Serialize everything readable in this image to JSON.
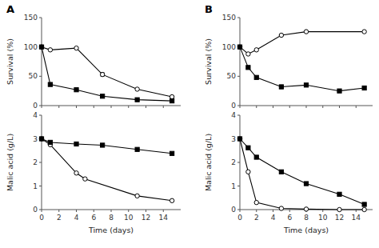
{
  "chart_data": [
    {
      "type": "line",
      "title": "A",
      "ylabel": "Survival (%)",
      "xlim": [
        0,
        16
      ],
      "xticks": [
        0,
        2,
        4,
        6,
        8,
        10,
        12,
        14
      ],
      "ylim": [
        0,
        150
      ],
      "yticks": [
        0,
        50,
        100,
        150
      ],
      "tick_labels": "y",
      "series": [
        {
          "marker": "open-circle",
          "color": "black",
          "x": [
            0,
            1,
            4,
            7,
            11,
            15
          ],
          "values": [
            100,
            95,
            98,
            53,
            28,
            15
          ],
          "errors": [
            0,
            0,
            0,
            3,
            0,
            0
          ]
        },
        {
          "marker": "filled-square",
          "color": "black",
          "x": [
            0,
            1,
            4,
            7,
            11,
            15
          ],
          "values": [
            100,
            36,
            27,
            16,
            10,
            8
          ],
          "errors": [
            0,
            0,
            0,
            0,
            0,
            0
          ]
        }
      ]
    },
    {
      "type": "line",
      "xlabel": "Time (days)",
      "ylabel": "Malic acid (g/L)",
      "xlim": [
        0,
        16
      ],
      "xticks": [
        0,
        2,
        4,
        6,
        8,
        10,
        12,
        14
      ],
      "ylim": [
        0,
        4
      ],
      "yticks": [
        0,
        1,
        2,
        3,
        4
      ],
      "series": [
        {
          "marker": "open-circle",
          "color": "black",
          "x": [
            0,
            1,
            4,
            5,
            11,
            15
          ],
          "values": [
            3.0,
            2.75,
            1.55,
            1.3,
            0.58,
            0.38
          ]
        },
        {
          "marker": "filled-square",
          "color": "black",
          "x": [
            0,
            1,
            4,
            7,
            11,
            15
          ],
          "values": [
            3.0,
            2.85,
            2.78,
            2.73,
            2.55,
            2.38
          ]
        }
      ]
    },
    {
      "type": "line",
      "title": "B",
      "ylabel": "Survival (%)",
      "xlim": [
        0,
        16
      ],
      "xticks": [
        0,
        2,
        4,
        6,
        8,
        10,
        12,
        14
      ],
      "ylim": [
        0,
        150
      ],
      "yticks": [
        0,
        50,
        100,
        150
      ],
      "tick_labels": "y",
      "series": [
        {
          "marker": "open-circle",
          "color": "black",
          "x": [
            0,
            1,
            2,
            5,
            8,
            15
          ],
          "values": [
            100,
            88,
            95,
            120,
            126,
            126
          ],
          "errors": [
            0,
            0,
            0,
            0,
            0,
            0
          ]
        },
        {
          "marker": "filled-square",
          "color": "black",
          "x": [
            0,
            1,
            2,
            5,
            8,
            12,
            15
          ],
          "values": [
            100,
            65,
            48,
            32,
            35,
            25,
            30
          ],
          "errors": [
            0,
            0,
            0,
            3,
            0,
            0,
            0
          ]
        }
      ]
    },
    {
      "type": "line",
      "xlabel": "Time (days)",
      "ylabel": "Malic acid (g/L)",
      "xlim": [
        0,
        16
      ],
      "xticks": [
        0,
        2,
        4,
        6,
        8,
        10,
        12,
        14
      ],
      "ylim": [
        0,
        4
      ],
      "yticks": [
        0,
        1,
        2,
        3,
        4
      ],
      "series": [
        {
          "marker": "open-circle",
          "color": "black",
          "x": [
            0,
            1,
            2,
            5,
            8,
            12,
            15
          ],
          "values": [
            3.0,
            1.6,
            0.3,
            0.05,
            0.02,
            0.0,
            0.0
          ]
        },
        {
          "marker": "filled-square",
          "color": "black",
          "x": [
            0,
            1,
            2,
            5,
            8,
            12,
            15
          ],
          "values": [
            3.0,
            2.62,
            2.22,
            1.6,
            1.1,
            0.65,
            0.22
          ]
        }
      ]
    }
  ]
}
